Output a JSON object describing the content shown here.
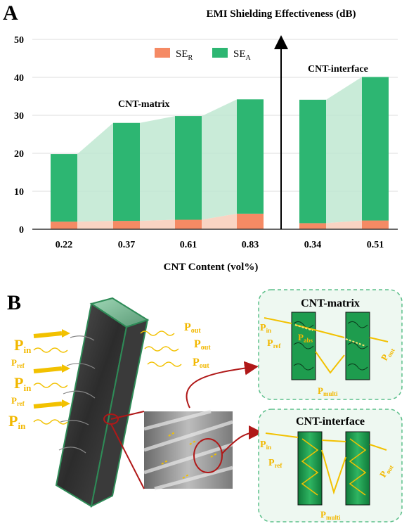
{
  "panel_a": {
    "label": "A",
    "ylabel_top": "EMI Shielding Effectiveness (dB)",
    "xlabel": "CNT Content (vol%)",
    "group_matrix": "CNT-matrix",
    "group_interface": "CNT-interface",
    "legend": {
      "ser_main": "SE",
      "ser_sub": "R",
      "sea_main": "SE",
      "sea_sub": "A"
    }
  },
  "chart_data": {
    "type": "bar",
    "stacked": true,
    "ylim": [
      0,
      50
    ],
    "yticks": [
      0,
      10,
      20,
      30,
      40,
      50
    ],
    "grid": true,
    "legend_position": "top-center",
    "groups": [
      {
        "name": "CNT-matrix",
        "categories": [
          "0.22",
          "0.37",
          "0.61",
          "0.83"
        ],
        "se_r": [
          2.0,
          2.2,
          2.5,
          4.1
        ],
        "se_a": [
          17.8,
          25.8,
          27.3,
          30.1
        ]
      },
      {
        "name": "CNT-interface",
        "categories": [
          "0.34",
          "0.51"
        ],
        "se_r": [
          1.6,
          2.3
        ],
        "se_a": [
          32.5,
          37.8
        ]
      }
    ],
    "colors": {
      "se_r": "#f58a64",
      "se_a": "#2db672",
      "se_a_fill": "#bfe8d1",
      "se_r_fill": "#f8cfbd"
    }
  },
  "panel_b": {
    "label": "B",
    "p_main": "P",
    "sub_in": "in",
    "sub_ref": "ref",
    "sub_out": "out",
    "sub_abs": "abs",
    "sub_multi": "multi",
    "box_matrix_title": "CNT-matrix",
    "box_interface_title": "CNT-interface"
  }
}
